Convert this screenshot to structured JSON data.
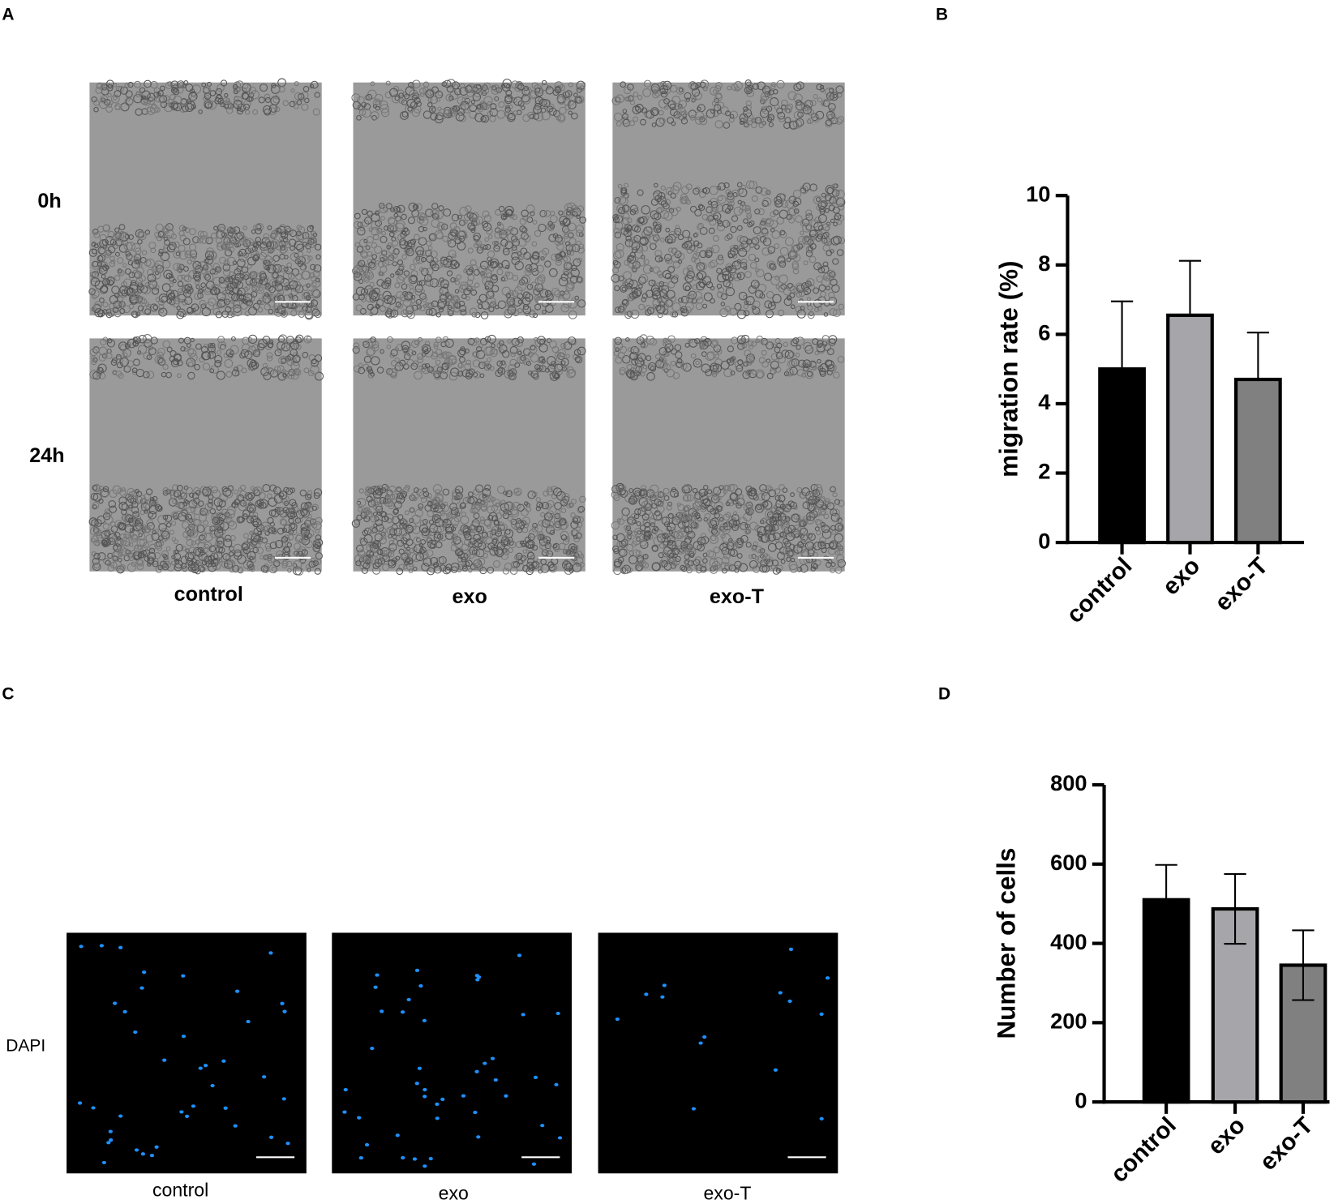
{
  "panel_labels": [
    "A",
    "B",
    "C",
    "D"
  ],
  "migration_images": {
    "rows": [
      "0h",
      "24h"
    ],
    "columns": [
      "control",
      "exo",
      "exo-T"
    ]
  },
  "dapi_images": {
    "row": "DAPI",
    "columns": [
      "control",
      "exo",
      "exo-T"
    ]
  },
  "chart_data": [
    {
      "type": "bar",
      "y_label": "migration rate (%)",
      "categories": [
        "control",
        "exo",
        "exo-T"
      ],
      "values": [
        5.0,
        6.55,
        4.7
      ],
      "errors": [
        1.95,
        1.57,
        1.35
      ],
      "error_bars": "upper",
      "colors": [
        "#000000",
        "#a6a6aa",
        "#808080"
      ],
      "ylim": [
        0,
        10
      ],
      "yticks": [
        0,
        2,
        4,
        6,
        8,
        10
      ]
    },
    {
      "type": "bar",
      "y_label": "Number of cells",
      "categories": [
        "control",
        "exo",
        "exo-T"
      ],
      "values": [
        510,
        487,
        345
      ],
      "errors": [
        88,
        88,
        88
      ],
      "error_bars": "both",
      "colors": [
        "#000000",
        "#a6a6aa",
        "#808080"
      ],
      "ylim": [
        0,
        800
      ],
      "yticks": [
        0,
        200,
        400,
        600,
        800
      ]
    }
  ]
}
